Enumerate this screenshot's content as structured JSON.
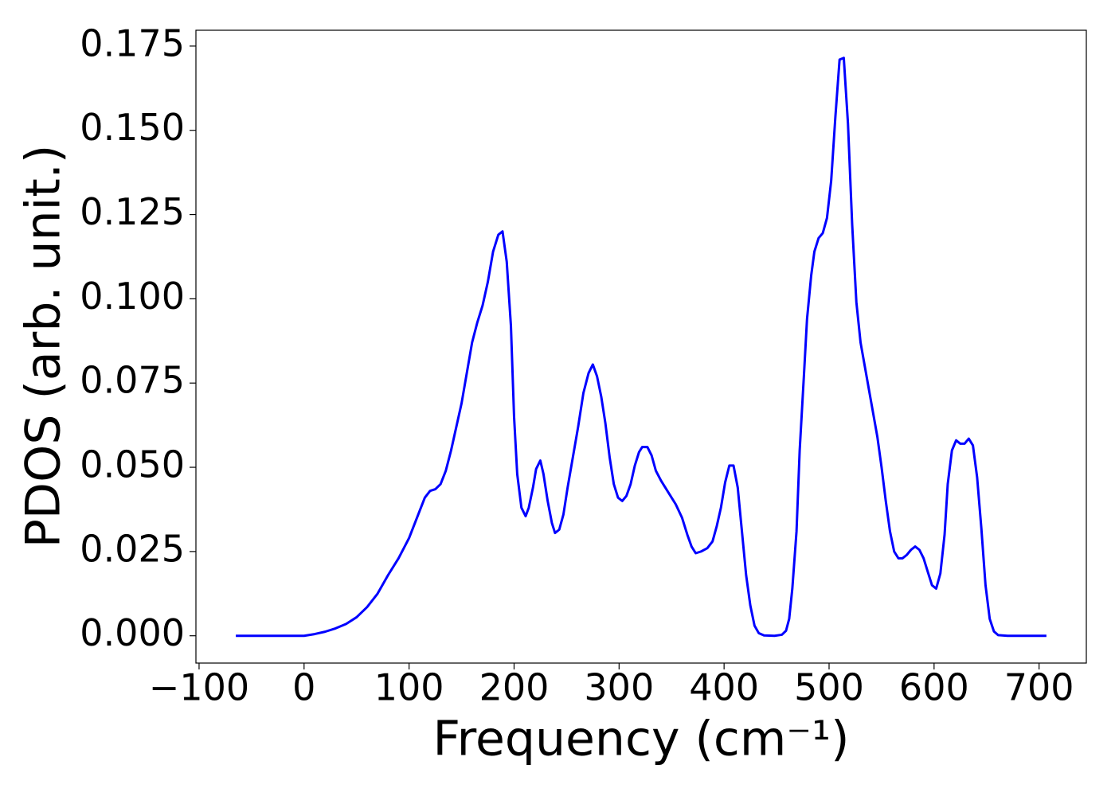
{
  "chart_data": {
    "type": "line",
    "xlabel": "Frequency (cm⁻¹)",
    "ylabel": "PDOS (arb. unit.)",
    "color": "#0000ff",
    "x": [
      -65,
      0,
      10,
      20,
      30,
      40,
      50,
      60,
      70,
      80,
      90,
      100,
      110,
      115,
      120,
      125,
      130,
      135,
      140,
      150,
      160,
      165,
      170,
      175,
      180,
      185,
      189,
      193,
      197,
      200,
      203,
      207,
      211,
      214,
      218,
      221,
      225,
      228,
      232,
      236,
      239,
      243,
      247,
      251,
      256,
      261,
      266,
      271,
      275,
      279,
      283,
      287,
      291,
      295,
      299,
      303,
      307,
      311,
      315,
      319,
      322,
      327,
      331,
      335,
      340,
      348,
      354,
      360,
      365,
      369,
      373,
      378,
      384,
      389,
      393,
      397,
      401,
      405,
      409,
      413,
      417,
      421,
      425,
      429,
      433,
      438,
      448,
      455,
      459,
      462,
      465,
      469,
      472,
      476,
      479,
      483,
      486,
      490,
      494,
      498,
      502,
      506,
      510,
      514,
      518,
      522,
      526,
      530,
      534,
      538,
      542,
      546,
      550,
      554,
      558,
      562,
      566,
      570,
      574,
      578,
      582,
      586,
      590,
      594,
      598,
      602,
      606,
      610,
      613,
      617,
      621,
      625,
      629,
      633,
      637,
      641,
      645,
      649,
      653,
      657,
      661,
      670,
      707
    ],
    "values": [
      0,
      0,
      0.0005,
      0.0012,
      0.0022,
      0.0035,
      0.0055,
      0.0085,
      0.0125,
      0.018,
      0.023,
      0.029,
      0.037,
      0.041,
      0.043,
      0.0435,
      0.045,
      0.049,
      0.055,
      0.069,
      0.087,
      0.093,
      0.098,
      0.105,
      0.114,
      0.119,
      0.12,
      0.111,
      0.092,
      0.065,
      0.048,
      0.038,
      0.0355,
      0.038,
      0.044,
      0.0495,
      0.052,
      0.048,
      0.04,
      0.0335,
      0.0305,
      0.0315,
      0.036,
      0.044,
      0.053,
      0.062,
      0.072,
      0.078,
      0.0805,
      0.077,
      0.071,
      0.063,
      0.053,
      0.045,
      0.041,
      0.04,
      0.0415,
      0.045,
      0.0505,
      0.0545,
      0.056,
      0.056,
      0.0535,
      0.049,
      0.046,
      0.042,
      0.039,
      0.035,
      0.03,
      0.0265,
      0.0245,
      0.025,
      0.026,
      0.028,
      0.0325,
      0.038,
      0.0455,
      0.0505,
      0.0505,
      0.044,
      0.031,
      0.018,
      0.009,
      0.003,
      0.0008,
      0.0001,
      0,
      0.0003,
      0.0015,
      0.005,
      0.014,
      0.031,
      0.055,
      0.077,
      0.094,
      0.107,
      0.114,
      0.118,
      0.1195,
      0.124,
      0.135,
      0.154,
      0.171,
      0.1715,
      0.152,
      0.122,
      0.099,
      0.087,
      0.08,
      0.073,
      0.066,
      0.059,
      0.05,
      0.04,
      0.031,
      0.025,
      0.023,
      0.023,
      0.024,
      0.0255,
      0.0265,
      0.0255,
      0.023,
      0.019,
      0.015,
      0.014,
      0.0185,
      0.03,
      0.045,
      0.055,
      0.058,
      0.057,
      0.057,
      0.0585,
      0.0565,
      0.047,
      0.032,
      0.015,
      0.005,
      0.0013,
      0.0002,
      0,
      0
    ],
    "xlim": [
      -103,
      745
    ],
    "xticks": [
      {
        "value": -100,
        "label": "−100"
      },
      0,
      100,
      200,
      300,
      400,
      500,
      600,
      700
    ],
    "ylim": [
      -0.0081,
      0.1797
    ],
    "yticks": [
      {
        "value": 0,
        "label": "0.000"
      },
      {
        "value": 0.025,
        "label": "0.025"
      },
      {
        "value": 0.05,
        "label": "0.050"
      },
      {
        "value": 0.075,
        "label": "0.075"
      },
      {
        "value": 0.1,
        "label": "0.100"
      },
      {
        "value": 0.125,
        "label": "0.125"
      },
      {
        "value": 0.15,
        "label": "0.150"
      },
      {
        "value": 0.175,
        "label": "0.175"
      }
    ]
  }
}
